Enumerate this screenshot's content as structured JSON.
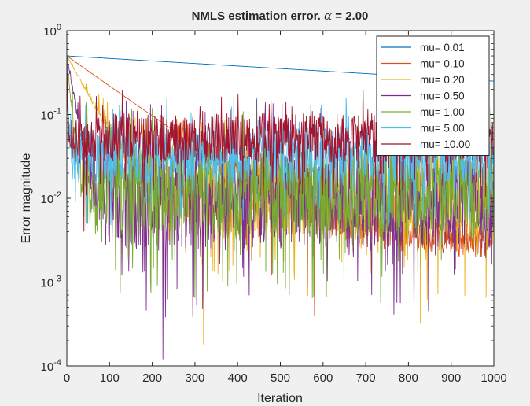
{
  "chart_data": {
    "type": "line",
    "title_prefix": "NMLS estimation error. ",
    "title_symbol": "α",
    "title_suffix": " = 2.00",
    "xlabel": "Iteration",
    "ylabel": "Error magnitude",
    "xlim": [
      0,
      1000
    ],
    "ylim": [
      0.0001,
      1
    ],
    "yscale": "log",
    "grid": false,
    "legend_position": "top-right",
    "x_ticks": [
      0,
      100,
      200,
      300,
      400,
      500,
      600,
      700,
      800,
      900,
      1000
    ],
    "x_tick_labels": [
      "0",
      "100",
      "200",
      "300",
      "400",
      "500",
      "600",
      "700",
      "800",
      "900",
      "1000"
    ],
    "y_ticks": [
      {
        "value": 1,
        "base": "10",
        "exp": "0"
      },
      {
        "value": 0.1,
        "base": "10",
        "exp": "-1"
      },
      {
        "value": 0.01,
        "base": "10",
        "exp": "-2"
      },
      {
        "value": 0.001,
        "base": "10",
        "exp": "-3"
      },
      {
        "value": 0.0001,
        "base": "10",
        "exp": "-4"
      }
    ],
    "series": [
      {
        "name": "mu= 0.01",
        "color": "#0072bd",
        "kind": "decay",
        "start": 0.5,
        "end": 0.25,
        "tau": 1450,
        "floor": 0.0,
        "amp": 0.02,
        "rough": 0.0
      },
      {
        "name": "mu= 0.10",
        "color": "#d95319",
        "kind": "decay",
        "start": 0.5,
        "end": 0.003,
        "tau": 120,
        "floor": 0.003,
        "amp": 0.35,
        "rough": 0.35,
        "spikes": [
          [
            580,
            0.0004
          ],
          [
            480,
            0.0012
          ]
        ]
      },
      {
        "name": "mu= 0.20",
        "color": "#edb120",
        "kind": "noisy",
        "start": 0.5,
        "tau": 45,
        "center": 0.012,
        "amp": 0.5,
        "spikes": [
          [
            320,
            0.00018
          ],
          [
            828,
            0.00032
          ],
          [
            300,
            0.0012
          ]
        ]
      },
      {
        "name": "mu= 0.50",
        "color": "#7e2f8e",
        "kind": "noisy",
        "start": 0.5,
        "tau": 14,
        "center": 0.013,
        "amp": 0.6,
        "spikes": [
          [
            225,
            0.00012
          ],
          [
            45,
            0.004
          ]
        ]
      },
      {
        "name": "mu= 1.00",
        "color": "#77ac30",
        "kind": "noisy",
        "start": 0.5,
        "tau": 7,
        "center": 0.016,
        "amp": 0.55,
        "spikes": [
          [
            125,
            0.00075
          ],
          [
            365,
            0.001
          ]
        ]
      },
      {
        "name": "mu= 5.00",
        "color": "#4dbeee",
        "kind": "noisy",
        "start": 0.5,
        "tau": 2,
        "center": 0.04,
        "amp": 0.35,
        "spikes": [
          [
            20,
            0.009
          ]
        ]
      },
      {
        "name": "mu= 10.00",
        "color": "#a2142f",
        "kind": "noisy",
        "start": 0.5,
        "tau": 1,
        "center": 0.06,
        "amp": 0.3,
        "spikes": [
          [
            40,
            0.004
          ]
        ]
      }
    ]
  }
}
